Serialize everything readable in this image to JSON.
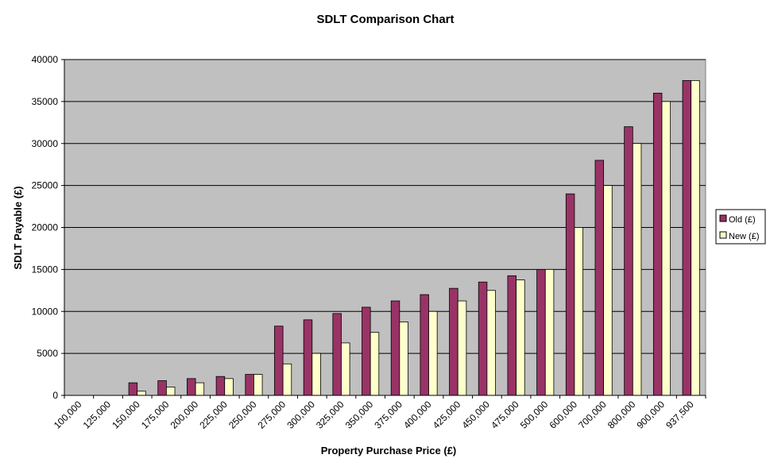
{
  "chart_data": {
    "type": "bar",
    "title": "SDLT Comparison Chart",
    "xlabel": "Property Purchase Price (£)",
    "ylabel": "SDLT Payable (£)",
    "ylim": [
      0,
      40000
    ],
    "yticks": [
      0,
      5000,
      10000,
      15000,
      20000,
      25000,
      30000,
      35000,
      40000
    ],
    "grid": true,
    "legend_position": "right",
    "categories": [
      "100,000",
      "125,000",
      "150,000",
      "175,000",
      "200,000",
      "225,000",
      "250,000",
      "275,000",
      "300,000",
      "325,000",
      "350,000",
      "375,000",
      "400,000",
      "425,000",
      "450,000",
      "475,000",
      "500,000",
      "600,000",
      "700,000",
      "800,000",
      "900,000",
      "937,500"
    ],
    "series": [
      {
        "name": "Old (£)",
        "color": "#993366",
        "values": [
          0,
          0,
          1500,
          1750,
          2000,
          2250,
          2500,
          8250,
          9000,
          9750,
          10500,
          11250,
          12000,
          12750,
          13500,
          14250,
          15000,
          24000,
          28000,
          32000,
          36000,
          37500
        ]
      },
      {
        "name": "New (£)",
        "color": "#FFFFCC",
        "values": [
          0,
          0,
          500,
          1000,
          1500,
          2000,
          2500,
          3750,
          5000,
          6250,
          7500,
          8750,
          10000,
          11250,
          12500,
          13750,
          15000,
          20000,
          25000,
          30000,
          35000,
          37500
        ]
      }
    ],
    "plot_background": "#C0C0C0"
  }
}
